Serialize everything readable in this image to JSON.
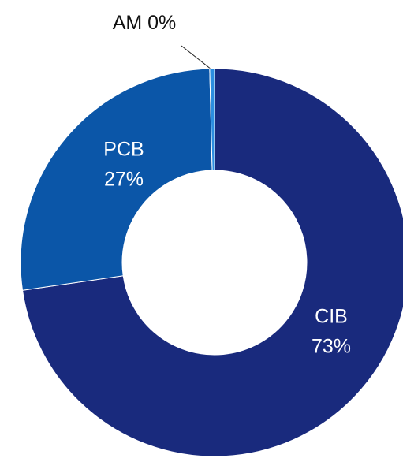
{
  "chart_data": {
    "type": "donut",
    "categories": [
      "CIB",
      "PCB",
      "AM"
    ],
    "values": [
      73,
      27,
      0.4
    ],
    "value_labels": [
      "73%",
      "27%",
      "0%"
    ],
    "colors": [
      "#192a7d",
      "#0b56a8",
      "#2b8ee0"
    ]
  }
}
